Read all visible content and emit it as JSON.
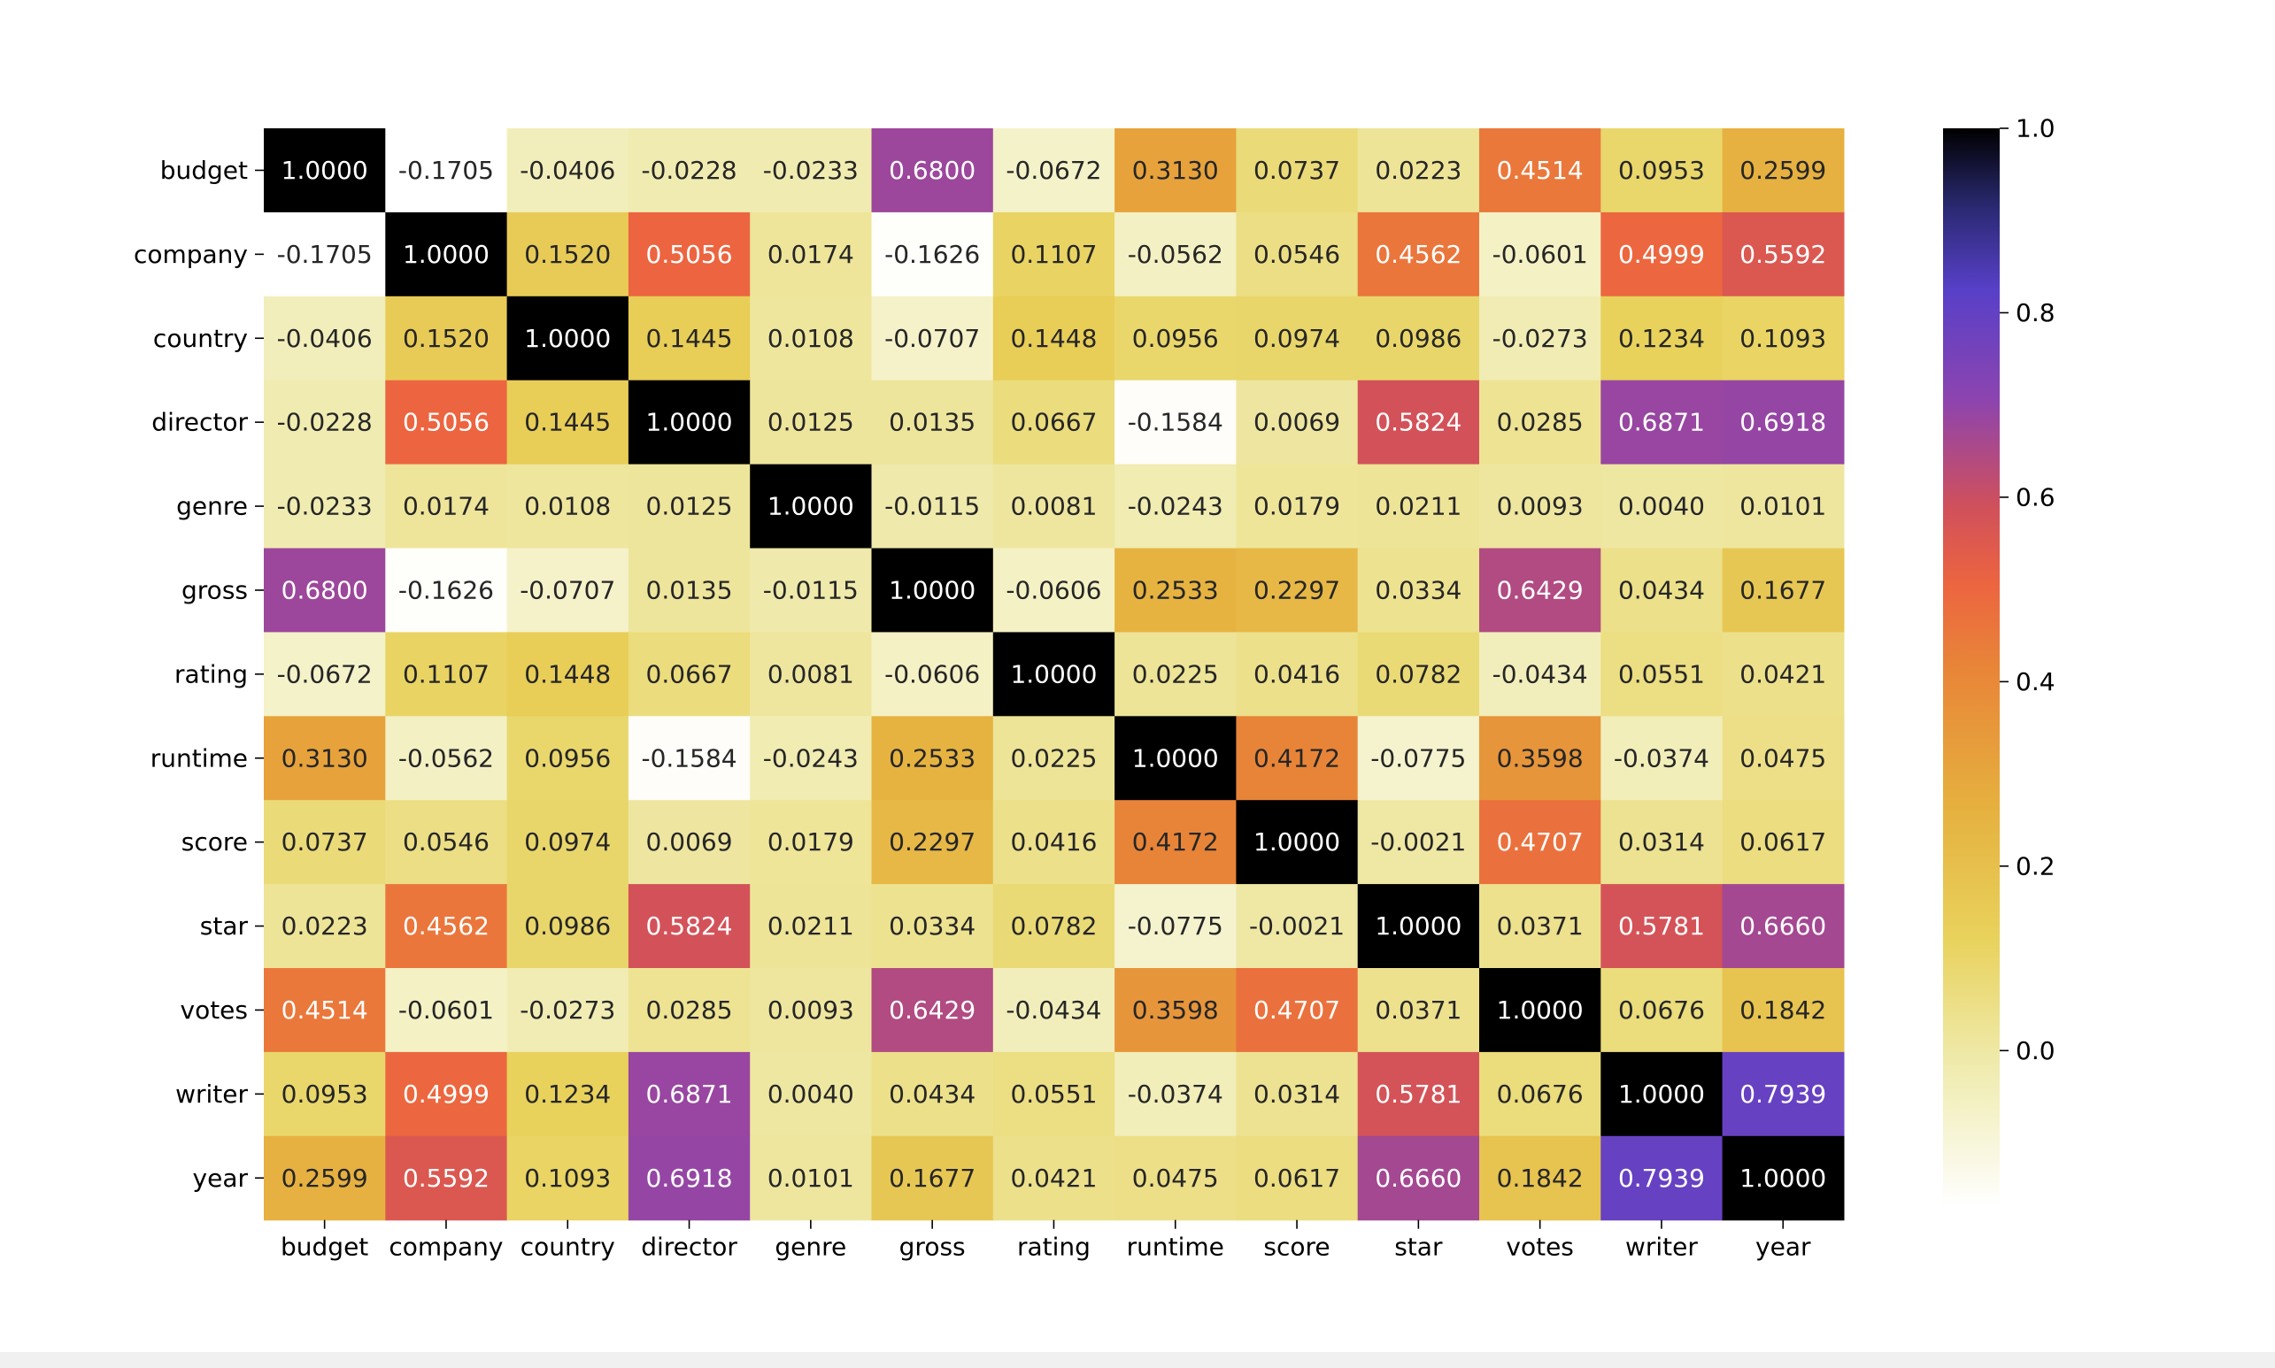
{
  "chart_data": {
    "type": "heatmap",
    "x_labels": [
      "budget",
      "company",
      "country",
      "director",
      "genre",
      "gross",
      "rating",
      "runtime",
      "score",
      "star",
      "votes",
      "writer",
      "year"
    ],
    "y_labels": [
      "budget",
      "company",
      "country",
      "director",
      "genre",
      "gross",
      "rating",
      "runtime",
      "score",
      "star",
      "votes",
      "writer",
      "year"
    ],
    "values": [
      [
        1.0,
        -0.1705,
        -0.0406,
        -0.0228,
        -0.0233,
        0.68,
        -0.0672,
        0.313,
        0.0737,
        0.0223,
        0.4514,
        0.0953,
        0.2599
      ],
      [
        -0.1705,
        1.0,
        0.152,
        0.5056,
        0.0174,
        -0.1626,
        0.1107,
        -0.0562,
        0.0546,
        0.4562,
        -0.0601,
        0.4999,
        0.5592
      ],
      [
        -0.0406,
        0.152,
        1.0,
        0.1445,
        0.0108,
        -0.0707,
        0.1448,
        0.0956,
        0.0974,
        0.0986,
        -0.0273,
        0.1234,
        0.1093
      ],
      [
        -0.0228,
        0.5056,
        0.1445,
        1.0,
        0.0125,
        0.0135,
        0.0667,
        -0.1584,
        0.0069,
        0.5824,
        0.0285,
        0.6871,
        0.6918
      ],
      [
        -0.0233,
        0.0174,
        0.0108,
        0.0125,
        1.0,
        -0.0115,
        0.0081,
        -0.0243,
        0.0179,
        0.0211,
        0.0093,
        0.004,
        0.0101
      ],
      [
        0.68,
        -0.1626,
        -0.0707,
        0.0135,
        -0.0115,
        1.0,
        -0.0606,
        0.2533,
        0.2297,
        0.0334,
        0.6429,
        0.0434,
        0.1677
      ],
      [
        -0.0672,
        0.1107,
        0.1448,
        0.0667,
        0.0081,
        -0.0606,
        1.0,
        0.0225,
        0.0416,
        0.0782,
        -0.0434,
        0.0551,
        0.0421
      ],
      [
        0.313,
        -0.0562,
        0.0956,
        -0.1584,
        -0.0243,
        0.2533,
        0.0225,
        1.0,
        0.4172,
        -0.0775,
        0.3598,
        -0.0374,
        0.0475
      ],
      [
        0.0737,
        0.0546,
        0.0974,
        0.0069,
        0.0179,
        0.2297,
        0.0416,
        0.4172,
        1.0,
        -0.0021,
        0.4707,
        0.0314,
        0.0617
      ],
      [
        0.0223,
        0.4562,
        0.0986,
        0.5824,
        0.0211,
        0.0334,
        0.0782,
        -0.0775,
        -0.0021,
        1.0,
        0.0371,
        0.5781,
        0.666
      ],
      [
        0.4514,
        -0.0601,
        -0.0273,
        0.0285,
        0.0093,
        0.6429,
        -0.0434,
        0.3598,
        0.4707,
        0.0371,
        1.0,
        0.0676,
        0.1842
      ],
      [
        0.0953,
        0.4999,
        0.1234,
        0.6871,
        0.004,
        0.0434,
        0.0551,
        -0.0374,
        0.0314,
        0.5781,
        0.0676,
        1.0,
        0.7939
      ],
      [
        0.2599,
        0.5592,
        0.1093,
        0.6918,
        0.0101,
        0.1677,
        0.0421,
        0.0475,
        0.0617,
        0.666,
        0.1842,
        0.7939,
        1.0
      ]
    ],
    "value_format": "4 decimals",
    "colormap": "CMRmap_r",
    "colorbar": {
      "range": [
        -0.1705,
        1.0
      ],
      "ticks": [
        0.0,
        0.2,
        0.4,
        0.6,
        0.8,
        1.0
      ],
      "tick_labels": [
        "0.0",
        "0.2",
        "0.4",
        "0.6",
        "0.8",
        "1.0"
      ],
      "placement": "right"
    },
    "title": "",
    "xlabel": "",
    "ylabel": ""
  }
}
